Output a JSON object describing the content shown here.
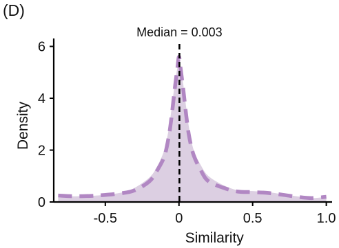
{
  "panel_label": "(D)",
  "colors": {
    "fill": "#dccfe2",
    "dashed_curve": "#b187c3",
    "median_line": "#000000",
    "axis": "#000000"
  },
  "chart_data": {
    "type": "area",
    "title": "",
    "xlabel": "Similarity",
    "ylabel": "Density",
    "xlim": [
      -0.85,
      1.03
    ],
    "ylim": [
      0,
      6.2
    ],
    "xticks": [
      -0.5,
      0,
      0.5,
      1.0
    ],
    "xtick_labels": [
      "-0.5",
      "0",
      "0.5",
      "1.0"
    ],
    "yticks": [
      0,
      2,
      4,
      6
    ],
    "ytick_labels": [
      "0",
      "2",
      "4",
      "6"
    ],
    "grid": false,
    "annotation": "Median = 0.003",
    "median": 0.003,
    "series": [
      {
        "style": "filled area",
        "x": [
          -0.82,
          -0.7,
          -0.55,
          -0.4,
          -0.3,
          -0.2,
          -0.15,
          -0.1,
          -0.07,
          -0.05,
          -0.03,
          -0.01,
          0.0,
          0.01,
          0.03,
          0.05,
          0.07,
          0.1,
          0.15,
          0.2,
          0.3,
          0.4,
          0.5,
          0.6,
          0.7,
          0.8,
          0.9,
          1.0
        ],
        "y": [
          0.22,
          0.22,
          0.25,
          0.35,
          0.55,
          0.95,
          1.35,
          2.0,
          2.8,
          3.6,
          4.5,
          5.2,
          5.4,
          5.2,
          4.5,
          3.6,
          2.8,
          2.0,
          1.4,
          1.0,
          0.65,
          0.45,
          0.42,
          0.38,
          0.3,
          0.22,
          0.15,
          0.2
        ]
      },
      {
        "style": "dashed line",
        "x": [
          -0.82,
          -0.7,
          -0.55,
          -0.4,
          -0.3,
          -0.2,
          -0.15,
          -0.1,
          -0.07,
          -0.05,
          -0.03,
          -0.01,
          0.0,
          0.01,
          0.03,
          0.05,
          0.07,
          0.1,
          0.15,
          0.2,
          0.3,
          0.4,
          0.5,
          0.6,
          0.7,
          0.8,
          0.9,
          1.0
        ],
        "y": [
          0.25,
          0.22,
          0.25,
          0.33,
          0.45,
          0.8,
          1.2,
          1.75,
          2.5,
          3.3,
          4.3,
          5.2,
          5.6,
          5.2,
          4.3,
          3.3,
          2.5,
          1.8,
          1.2,
          0.8,
          0.55,
          0.4,
          0.38,
          0.35,
          0.28,
          0.2,
          0.15,
          0.2
        ]
      }
    ]
  }
}
